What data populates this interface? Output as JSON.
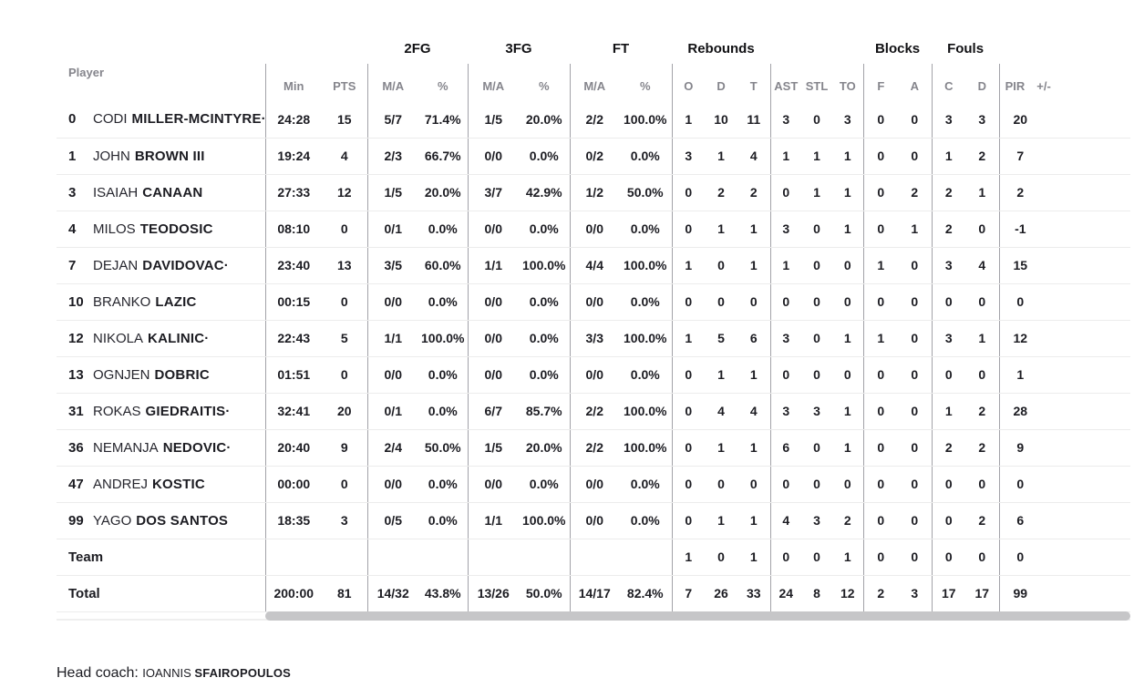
{
  "table": {
    "groups": {
      "fg2": "2FG",
      "fg3": "3FG",
      "ft": "FT",
      "rebounds": "Rebounds",
      "blocks": "Blocks",
      "fouls": "Fouls"
    },
    "headers": {
      "player": "Player",
      "min": "Min",
      "pts": "PTS",
      "ma": "M/A",
      "pct": "%",
      "o": "O",
      "d": "D",
      "t": "T",
      "ast": "AST",
      "stl": "STL",
      "to": "TO",
      "f": "F",
      "a": "A",
      "c": "C",
      "d2": "D",
      "pir": "PIR",
      "plus_minus": "+/-"
    },
    "rows": [
      {
        "num": "0",
        "first": "CODI",
        "last": "MILLER-MCINTYRE·",
        "min": "24:28",
        "pts": "15",
        "fg2_ma": "5/7",
        "fg2_pct": "71.4%",
        "fg3_ma": "1/5",
        "fg3_pct": "20.0%",
        "ft_ma": "2/2",
        "ft_pct": "100.0%",
        "reb_o": "1",
        "reb_d": "10",
        "reb_t": "11",
        "ast": "3",
        "stl": "0",
        "to": "3",
        "blk_f": "0",
        "blk_a": "0",
        "foul_c": "3",
        "foul_d": "3",
        "pir": "20"
      },
      {
        "num": "1",
        "first": "JOHN",
        "last": "BROWN III",
        "min": "19:24",
        "pts": "4",
        "fg2_ma": "2/3",
        "fg2_pct": "66.7%",
        "fg3_ma": "0/0",
        "fg3_pct": "0.0%",
        "ft_ma": "0/2",
        "ft_pct": "0.0%",
        "reb_o": "3",
        "reb_d": "1",
        "reb_t": "4",
        "ast": "1",
        "stl": "1",
        "to": "1",
        "blk_f": "0",
        "blk_a": "0",
        "foul_c": "1",
        "foul_d": "2",
        "pir": "7"
      },
      {
        "num": "3",
        "first": "ISAIAH",
        "last": "CANAAN",
        "min": "27:33",
        "pts": "12",
        "fg2_ma": "1/5",
        "fg2_pct": "20.0%",
        "fg3_ma": "3/7",
        "fg3_pct": "42.9%",
        "ft_ma": "1/2",
        "ft_pct": "50.0%",
        "reb_o": "0",
        "reb_d": "2",
        "reb_t": "2",
        "ast": "0",
        "stl": "1",
        "to": "1",
        "blk_f": "0",
        "blk_a": "2",
        "foul_c": "2",
        "foul_d": "1",
        "pir": "2"
      },
      {
        "num": "4",
        "first": "MILOS",
        "last": "TEODOSIC",
        "min": "08:10",
        "pts": "0",
        "fg2_ma": "0/1",
        "fg2_pct": "0.0%",
        "fg3_ma": "0/0",
        "fg3_pct": "0.0%",
        "ft_ma": "0/0",
        "ft_pct": "0.0%",
        "reb_o": "0",
        "reb_d": "1",
        "reb_t": "1",
        "ast": "3",
        "stl": "0",
        "to": "1",
        "blk_f": "0",
        "blk_a": "1",
        "foul_c": "2",
        "foul_d": "0",
        "pir": "-1"
      },
      {
        "num": "7",
        "first": "DEJAN",
        "last": "DAVIDOVAC·",
        "min": "23:40",
        "pts": "13",
        "fg2_ma": "3/5",
        "fg2_pct": "60.0%",
        "fg3_ma": "1/1",
        "fg3_pct": "100.0%",
        "ft_ma": "4/4",
        "ft_pct": "100.0%",
        "reb_o": "1",
        "reb_d": "0",
        "reb_t": "1",
        "ast": "1",
        "stl": "0",
        "to": "0",
        "blk_f": "1",
        "blk_a": "0",
        "foul_c": "3",
        "foul_d": "4",
        "pir": "15"
      },
      {
        "num": "10",
        "first": "BRANKO",
        "last": "LAZIC",
        "min": "00:15",
        "pts": "0",
        "fg2_ma": "0/0",
        "fg2_pct": "0.0%",
        "fg3_ma": "0/0",
        "fg3_pct": "0.0%",
        "ft_ma": "0/0",
        "ft_pct": "0.0%",
        "reb_o": "0",
        "reb_d": "0",
        "reb_t": "0",
        "ast": "0",
        "stl": "0",
        "to": "0",
        "blk_f": "0",
        "blk_a": "0",
        "foul_c": "0",
        "foul_d": "0",
        "pir": "0"
      },
      {
        "num": "12",
        "first": "NIKOLA",
        "last": "KALINIC·",
        "min": "22:43",
        "pts": "5",
        "fg2_ma": "1/1",
        "fg2_pct": "100.0%",
        "fg3_ma": "0/0",
        "fg3_pct": "0.0%",
        "ft_ma": "3/3",
        "ft_pct": "100.0%",
        "reb_o": "1",
        "reb_d": "5",
        "reb_t": "6",
        "ast": "3",
        "stl": "0",
        "to": "1",
        "blk_f": "1",
        "blk_a": "0",
        "foul_c": "3",
        "foul_d": "1",
        "pir": "12"
      },
      {
        "num": "13",
        "first": "OGNJEN",
        "last": "DOBRIC",
        "min": "01:51",
        "pts": "0",
        "fg2_ma": "0/0",
        "fg2_pct": "0.0%",
        "fg3_ma": "0/0",
        "fg3_pct": "0.0%",
        "ft_ma": "0/0",
        "ft_pct": "0.0%",
        "reb_o": "0",
        "reb_d": "1",
        "reb_t": "1",
        "ast": "0",
        "stl": "0",
        "to": "0",
        "blk_f": "0",
        "blk_a": "0",
        "foul_c": "0",
        "foul_d": "0",
        "pir": "1"
      },
      {
        "num": "31",
        "first": "ROKAS",
        "last": "GIEDRAITIS·",
        "min": "32:41",
        "pts": "20",
        "fg2_ma": "0/1",
        "fg2_pct": "0.0%",
        "fg3_ma": "6/7",
        "fg3_pct": "85.7%",
        "ft_ma": "2/2",
        "ft_pct": "100.0%",
        "reb_o": "0",
        "reb_d": "4",
        "reb_t": "4",
        "ast": "3",
        "stl": "3",
        "to": "1",
        "blk_f": "0",
        "blk_a": "0",
        "foul_c": "1",
        "foul_d": "2",
        "pir": "28"
      },
      {
        "num": "36",
        "first": "NEMANJA",
        "last": "NEDOVIC·",
        "min": "20:40",
        "pts": "9",
        "fg2_ma": "2/4",
        "fg2_pct": "50.0%",
        "fg3_ma": "1/5",
        "fg3_pct": "20.0%",
        "ft_ma": "2/2",
        "ft_pct": "100.0%",
        "reb_o": "0",
        "reb_d": "1",
        "reb_t": "1",
        "ast": "6",
        "stl": "0",
        "to": "1",
        "blk_f": "0",
        "blk_a": "0",
        "foul_c": "2",
        "foul_d": "2",
        "pir": "9"
      },
      {
        "num": "47",
        "first": "ANDREJ",
        "last": "KOSTIC",
        "min": "00:00",
        "pts": "0",
        "fg2_ma": "0/0",
        "fg2_pct": "0.0%",
        "fg3_ma": "0/0",
        "fg3_pct": "0.0%",
        "ft_ma": "0/0",
        "ft_pct": "0.0%",
        "reb_o": "0",
        "reb_d": "0",
        "reb_t": "0",
        "ast": "0",
        "stl": "0",
        "to": "0",
        "blk_f": "0",
        "blk_a": "0",
        "foul_c": "0",
        "foul_d": "0",
        "pir": "0"
      },
      {
        "num": "99",
        "first": "YAGO",
        "last": "DOS SANTOS",
        "min": "18:35",
        "pts": "3",
        "fg2_ma": "0/5",
        "fg2_pct": "0.0%",
        "fg3_ma": "1/1",
        "fg3_pct": "100.0%",
        "ft_ma": "0/0",
        "ft_pct": "0.0%",
        "reb_o": "0",
        "reb_d": "1",
        "reb_t": "1",
        "ast": "4",
        "stl": "3",
        "to": "2",
        "blk_f": "0",
        "blk_a": "0",
        "foul_c": "0",
        "foul_d": "2",
        "pir": "6"
      },
      {
        "label": "Team",
        "reb_o": "1",
        "reb_d": "0",
        "reb_t": "1",
        "ast": "0",
        "stl": "0",
        "to": "1",
        "blk_f": "0",
        "blk_a": "0",
        "foul_c": "0",
        "foul_d": "0",
        "pir": "0"
      },
      {
        "label": "Total",
        "min": "200:00",
        "pts": "81",
        "fg2_ma": "14/32",
        "fg2_pct": "43.8%",
        "fg3_ma": "13/26",
        "fg3_pct": "50.0%",
        "ft_ma": "14/17",
        "ft_pct": "82.4%",
        "reb_o": "7",
        "reb_d": "26",
        "reb_t": "33",
        "ast": "24",
        "stl": "8",
        "to": "12",
        "blk_f": "2",
        "blk_a": "3",
        "foul_c": "17",
        "foul_d": "17",
        "pir": "99"
      }
    ]
  },
  "footer": {
    "head_coach_label": "Head coach: ",
    "coach_first": "IOANNIS ",
    "coach_last": "SFAIROPOULOS"
  },
  "colors": {
    "header_gray": "#85858c",
    "text_dark": "#1c1c22",
    "separator_vertical": "#a2a2a8",
    "separator_horizontal": "#ececec",
    "scrollbar_thumb": "#c6c6c8"
  }
}
